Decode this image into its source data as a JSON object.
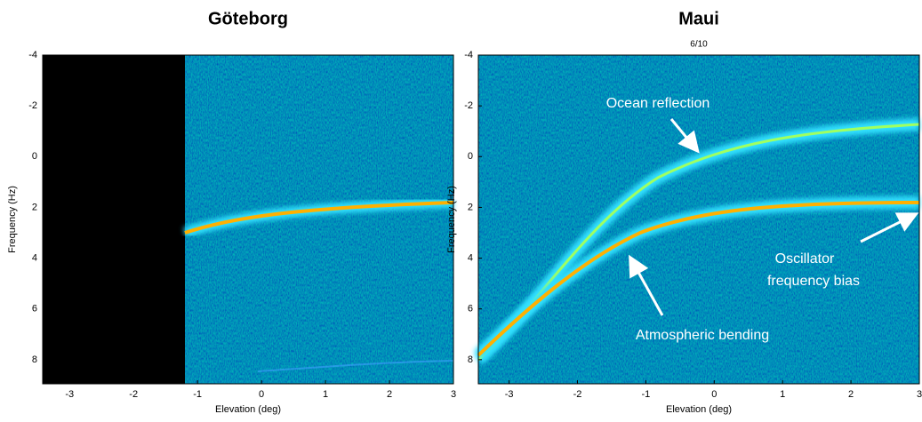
{
  "chart_data": [
    {
      "type": "spectrogram",
      "title": "Göteborg",
      "xlabel": "Elevation (deg)",
      "ylabel": "Frequency (Hz)",
      "xlim": [
        -3.42,
        3
      ],
      "ylim": [
        8.95,
        -4
      ],
      "xticks": [
        -3,
        -2,
        -1,
        0,
        1,
        2,
        3
      ],
      "yticks": [
        -4,
        -2,
        0,
        2,
        4,
        6,
        8
      ]
    },
    {
      "type": "spectrogram",
      "title": "Maui",
      "subtitle": "6/10",
      "xlabel": "Elevation (deg)",
      "ylabel": "Frequency (Hz)",
      "xlim": [
        -3.45,
        3
      ],
      "ylim": [
        8.95,
        -4
      ],
      "xticks": [
        -3,
        -2,
        -1,
        0,
        1,
        2,
        3
      ],
      "yticks": [
        -4,
        -2,
        0,
        2,
        4,
        6,
        8
      ],
      "annotations": [
        {
          "text": "Ocean reflection"
        },
        {
          "text": "Atmospheric bending"
        },
        {
          "lines": [
            "Oscillator",
            "frequency bias"
          ]
        }
      ]
    }
  ]
}
